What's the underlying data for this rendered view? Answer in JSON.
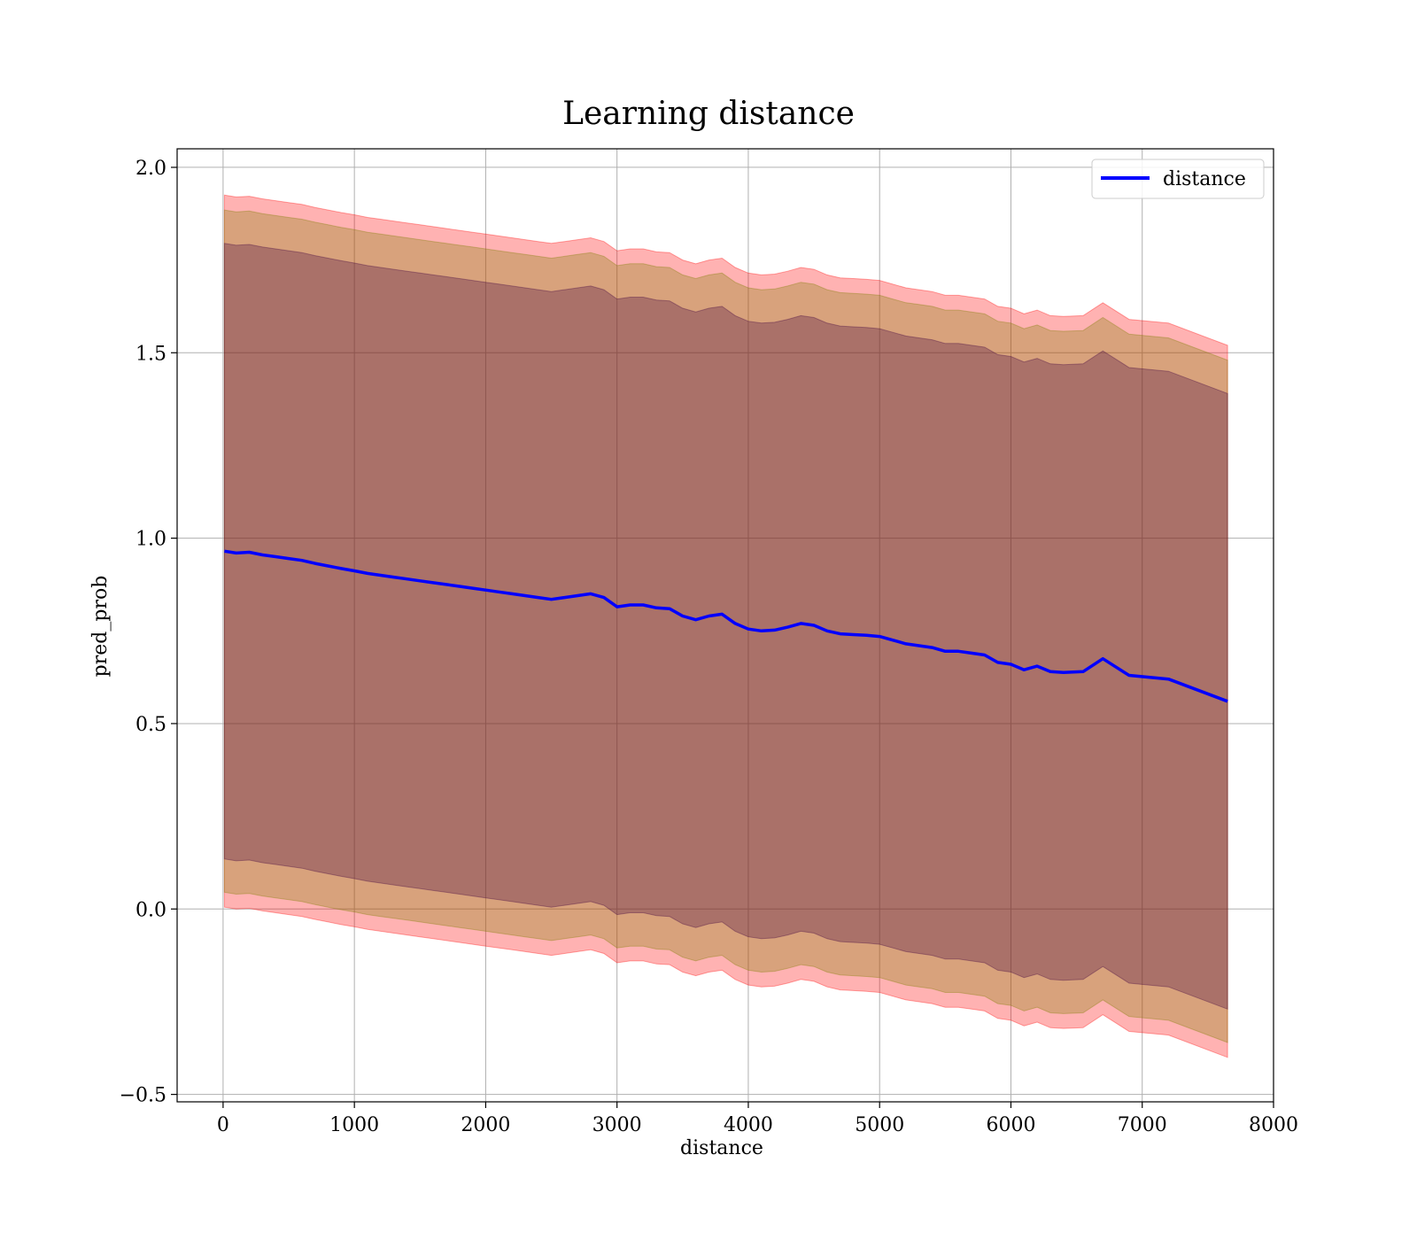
{
  "chart_data": {
    "type": "line",
    "title": "Learning distance",
    "xlabel": "distance",
    "ylabel": "pred_prob",
    "xlim": [
      -350,
      8000
    ],
    "ylim": [
      -0.52,
      2.05
    ],
    "xticks": [
      0,
      1000,
      2000,
      3000,
      4000,
      5000,
      6000,
      7000,
      8000
    ],
    "xtick_labels": [
      "0",
      "1000",
      "2000",
      "3000",
      "4000",
      "5000",
      "6000",
      "7000",
      "8000"
    ],
    "yticks": [
      -0.5,
      0.0,
      0.5,
      1.0,
      1.5,
      2.0
    ],
    "ytick_labels": [
      "−0.5",
      "0.0",
      "0.5",
      "1.0",
      "1.5",
      "2.0"
    ],
    "grid": true,
    "legend_position": "top-right",
    "series": [
      {
        "name": "distance",
        "color": "#0000ff",
        "x": [
          10,
          100,
          200,
          300,
          400,
          500,
          600,
          700,
          800,
          900,
          1000,
          1100,
          1200,
          1300,
          1400,
          1500,
          1600,
          1700,
          1800,
          1900,
          2000,
          2100,
          2200,
          2300,
          2400,
          2500,
          2600,
          2700,
          2800,
          2900,
          3000,
          3100,
          3200,
          3300,
          3400,
          3500,
          3600,
          3700,
          3800,
          3900,
          4000,
          4100,
          4200,
          4300,
          4400,
          4500,
          4600,
          4700,
          4800,
          4900,
          5000,
          5100,
          5200,
          5300,
          5400,
          5500,
          5600,
          5700,
          5800,
          5900,
          6000,
          6100,
          6200,
          6300,
          6400,
          6550,
          6700,
          6900,
          7200,
          7650
        ],
        "values": [
          0.965,
          0.96,
          0.962,
          0.955,
          0.95,
          0.945,
          0.94,
          0.932,
          0.925,
          0.918,
          0.912,
          0.905,
          0.9,
          0.895,
          0.89,
          0.885,
          0.88,
          0.875,
          0.87,
          0.865,
          0.86,
          0.855,
          0.85,
          0.845,
          0.84,
          0.835,
          0.84,
          0.845,
          0.85,
          0.84,
          0.815,
          0.82,
          0.82,
          0.812,
          0.81,
          0.79,
          0.78,
          0.79,
          0.795,
          0.77,
          0.755,
          0.75,
          0.752,
          0.76,
          0.77,
          0.765,
          0.75,
          0.742,
          0.74,
          0.738,
          0.735,
          0.725,
          0.715,
          0.71,
          0.705,
          0.695,
          0.695,
          0.69,
          0.685,
          0.665,
          0.66,
          0.645,
          0.655,
          0.64,
          0.638,
          0.64,
          0.675,
          0.63,
          0.62,
          0.56
        ]
      }
    ],
    "bands": [
      {
        "color": "#ff0000",
        "opacity": 0.3,
        "half_width": 0.96
      },
      {
        "color": "#7f7f00",
        "opacity": 0.3,
        "half_width": 0.92
      },
      {
        "color": "#400040",
        "opacity": 0.3,
        "half_width": 0.83
      }
    ]
  }
}
